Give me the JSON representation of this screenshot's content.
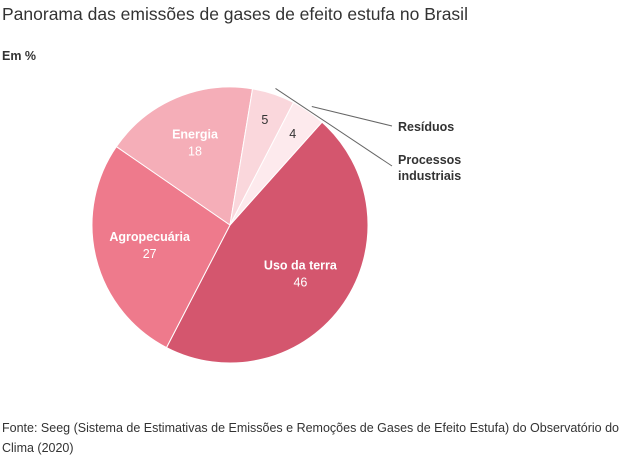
{
  "title": "Panorama das emissões de gases de efeito estufa no Brasil",
  "subtitle": "Em %",
  "source": "Fonte: Seeg (Sistema de Estimativas de Emissões e Remoções de Gases de Efeito Estufa) do Observatório do Clima (2020)",
  "chart_data": {
    "type": "pie",
    "unit": "%",
    "title": "Panorama das emissões de gases de efeito estufa no Brasil",
    "subtitle": "Em %",
    "slices": [
      {
        "name": "Uso da terra",
        "value": 46,
        "color": "#d4566e"
      },
      {
        "name": "Agropecuária",
        "value": 27,
        "color": "#ee7a8c"
      },
      {
        "name": "Energia",
        "value": 18,
        "color": "#f5aeb8"
      },
      {
        "name": "Processos industriais",
        "value": 5,
        "color": "#fad7dc"
      },
      {
        "name": "Resíduos",
        "value": 4,
        "color": "#fdeaed"
      }
    ],
    "callouts": [
      {
        "name": "Resíduos",
        "lines": [
          "Resíduos"
        ]
      },
      {
        "name": "Processos industriais",
        "lines": [
          "Processos",
          "industriais"
        ]
      }
    ]
  }
}
